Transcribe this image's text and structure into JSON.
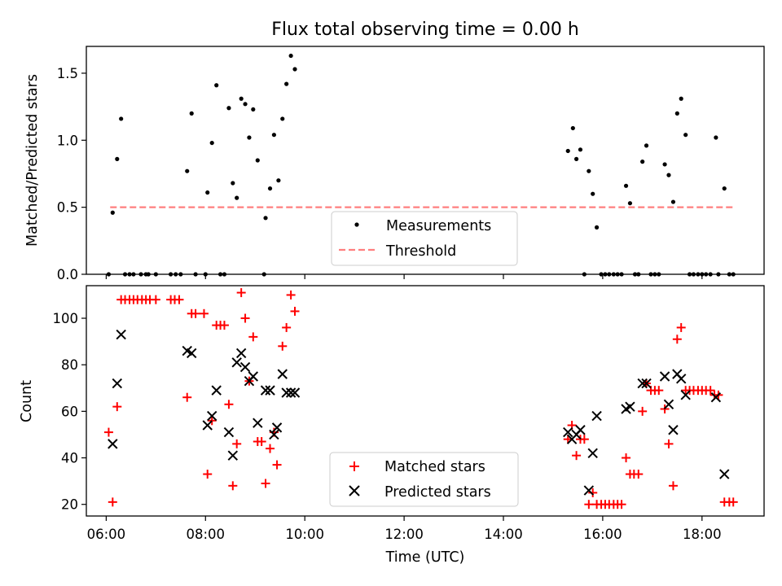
{
  "chart_data": [
    {
      "type": "scatter",
      "title": "Flux total observing time = 0.00 h",
      "xlabel": "",
      "ylabel": "Matched/Predicted stars",
      "xlim": [
        5.6,
        19.25
      ],
      "ylim": [
        0,
        1.7
      ],
      "yticks": [
        0.0,
        0.5,
        1.0,
        1.5
      ],
      "ytick_labels": [
        "0.0",
        "0.5",
        "1.0",
        "1.5"
      ],
      "legend_position": "lower center",
      "series": [
        {
          "name": "Measurements",
          "marker": "dot",
          "color": "#000000",
          "points": [
            [
              6.05,
              0.0
            ],
            [
              6.13,
              0.46
            ],
            [
              6.22,
              0.86
            ],
            [
              6.3,
              1.16
            ],
            [
              6.38,
              0.0
            ],
            [
              6.47,
              0.0
            ],
            [
              6.55,
              0.0
            ],
            [
              6.7,
              0.0
            ],
            [
              6.8,
              0.0
            ],
            [
              6.85,
              0.0
            ],
            [
              7.0,
              0.0
            ],
            [
              7.3,
              0.0
            ],
            [
              7.4,
              0.0
            ],
            [
              7.5,
              0.0
            ],
            [
              7.63,
              0.77
            ],
            [
              7.72,
              1.2
            ],
            [
              7.8,
              0.0
            ],
            [
              8.0,
              0.0
            ],
            [
              8.04,
              0.61
            ],
            [
              8.13,
              0.98
            ],
            [
              8.22,
              1.41
            ],
            [
              8.3,
              0.0
            ],
            [
              8.38,
              0.0
            ],
            [
              8.47,
              1.24
            ],
            [
              8.55,
              0.68
            ],
            [
              8.63,
              0.57
            ],
            [
              8.72,
              1.31
            ],
            [
              8.8,
              1.27
            ],
            [
              8.88,
              1.02
            ],
            [
              8.96,
              1.23
            ],
            [
              9.05,
              0.85
            ],
            [
              9.18,
              0.0
            ],
            [
              9.21,
              0.42
            ],
            [
              9.3,
              0.64
            ],
            [
              9.38,
              1.04
            ],
            [
              9.47,
              0.7
            ],
            [
              9.55,
              1.16
            ],
            [
              9.63,
              1.42
            ],
            [
              9.72,
              1.63
            ],
            [
              9.8,
              1.53
            ],
            [
              15.3,
              0.92
            ],
            [
              15.4,
              1.09
            ],
            [
              15.47,
              0.86
            ],
            [
              15.55,
              0.93
            ],
            [
              15.63,
              0.0
            ],
            [
              15.72,
              0.77
            ],
            [
              15.8,
              0.6
            ],
            [
              15.88,
              0.35
            ],
            [
              15.97,
              0.0
            ],
            [
              16.05,
              0.0
            ],
            [
              16.13,
              0.0
            ],
            [
              16.22,
              0.0
            ],
            [
              16.3,
              0.0
            ],
            [
              16.38,
              0.0
            ],
            [
              16.47,
              0.66
            ],
            [
              16.55,
              0.53
            ],
            [
              16.65,
              0.0
            ],
            [
              16.72,
              0.0
            ],
            [
              16.8,
              0.84
            ],
            [
              16.88,
              0.96
            ],
            [
              16.97,
              0.0
            ],
            [
              17.05,
              0.0
            ],
            [
              17.13,
              0.0
            ],
            [
              17.25,
              0.82
            ],
            [
              17.33,
              0.74
            ],
            [
              17.42,
              0.54
            ],
            [
              17.5,
              1.2
            ],
            [
              17.58,
              1.31
            ],
            [
              17.67,
              1.04
            ],
            [
              17.75,
              0.0
            ],
            [
              17.83,
              0.0
            ],
            [
              17.92,
              0.0
            ],
            [
              18.0,
              0.0
            ],
            [
              18.08,
              0.0
            ],
            [
              18.17,
              0.0
            ],
            [
              18.28,
              1.02
            ],
            [
              18.33,
              0.0
            ],
            [
              18.45,
              0.64
            ],
            [
              18.55,
              0.0
            ],
            [
              18.63,
              0.0
            ]
          ]
        },
        {
          "name": "Threshold",
          "style": "dashed",
          "color": "#ff7f7f",
          "x": [
            6.08,
            18.65
          ],
          "y": [
            0.5,
            0.5
          ]
        }
      ]
    },
    {
      "type": "scatter",
      "title": "",
      "xlabel": "Time (UTC)",
      "ylabel": "Count",
      "xlim": [
        5.6,
        19.25
      ],
      "ylim": [
        15,
        114
      ],
      "xticks": [
        6,
        8,
        10,
        12,
        14,
        16,
        18
      ],
      "xtick_labels": [
        "06:00",
        "08:00",
        "10:00",
        "12:00",
        "14:00",
        "16:00",
        "18:00"
      ],
      "yticks": [
        20,
        40,
        60,
        80,
        100
      ],
      "ytick_labels": [
        "20",
        "40",
        "60",
        "80",
        "100"
      ],
      "legend_position": "lower center",
      "series": [
        {
          "name": "Matched stars",
          "marker": "plus",
          "color": "#ff0000",
          "points": [
            [
              6.05,
              51
            ],
            [
              6.13,
              21
            ],
            [
              6.22,
              62
            ],
            [
              6.3,
              108
            ],
            [
              6.38,
              108
            ],
            [
              6.47,
              108
            ],
            [
              6.55,
              108
            ],
            [
              6.63,
              108
            ],
            [
              6.72,
              108
            ],
            [
              6.8,
              108
            ],
            [
              6.88,
              108
            ],
            [
              7.0,
              108
            ],
            [
              7.3,
              108
            ],
            [
              7.38,
              108
            ],
            [
              7.47,
              108
            ],
            [
              7.63,
              66
            ],
            [
              7.72,
              102
            ],
            [
              7.8,
              102
            ],
            [
              7.97,
              102
            ],
            [
              8.04,
              33
            ],
            [
              8.13,
              56
            ],
            [
              8.22,
              97
            ],
            [
              8.3,
              97
            ],
            [
              8.38,
              97
            ],
            [
              8.47,
              63
            ],
            [
              8.55,
              28
            ],
            [
              8.63,
              46
            ],
            [
              8.72,
              111
            ],
            [
              8.8,
              100
            ],
            [
              8.88,
              73
            ],
            [
              8.96,
              92
            ],
            [
              9.05,
              47
            ],
            [
              9.13,
              47
            ],
            [
              9.21,
              29
            ],
            [
              9.3,
              44
            ],
            [
              9.38,
              51
            ],
            [
              9.44,
              37
            ],
            [
              9.55,
              88
            ],
            [
              9.63,
              96
            ],
            [
              9.72,
              110
            ],
            [
              9.8,
              103
            ],
            [
              15.3,
              48
            ],
            [
              15.38,
              54
            ],
            [
              15.47,
              41
            ],
            [
              15.55,
              48
            ],
            [
              15.63,
              48
            ],
            [
              15.72,
              20
            ],
            [
              15.8,
              25
            ],
            [
              15.88,
              20
            ],
            [
              15.97,
              20
            ],
            [
              16.05,
              20
            ],
            [
              16.13,
              20
            ],
            [
              16.22,
              20
            ],
            [
              16.3,
              20
            ],
            [
              16.38,
              20
            ],
            [
              16.47,
              40
            ],
            [
              16.55,
              33
            ],
            [
              16.63,
              33
            ],
            [
              16.72,
              33
            ],
            [
              16.8,
              60
            ],
            [
              16.88,
              72
            ],
            [
              16.97,
              69
            ],
            [
              17.05,
              69
            ],
            [
              17.13,
              69
            ],
            [
              17.25,
              61
            ],
            [
              17.33,
              46
            ],
            [
              17.42,
              28
            ],
            [
              17.5,
              91
            ],
            [
              17.58,
              96
            ],
            [
              17.67,
              69
            ],
            [
              17.75,
              69
            ],
            [
              17.83,
              69
            ],
            [
              17.92,
              69
            ],
            [
              18.0,
              69
            ],
            [
              18.08,
              69
            ],
            [
              18.17,
              69
            ],
            [
              18.25,
              67
            ],
            [
              18.33,
              67
            ],
            [
              18.45,
              21
            ],
            [
              18.55,
              21
            ],
            [
              18.63,
              21
            ]
          ]
        },
        {
          "name": "Predicted stars",
          "marker": "x",
          "color": "#000000",
          "points": [
            [
              6.13,
              46
            ],
            [
              6.22,
              72
            ],
            [
              6.3,
              93
            ],
            [
              7.63,
              86
            ],
            [
              7.72,
              85
            ],
            [
              8.04,
              54
            ],
            [
              8.13,
              58
            ],
            [
              8.22,
              69
            ],
            [
              8.47,
              51
            ],
            [
              8.55,
              41
            ],
            [
              8.63,
              81
            ],
            [
              8.72,
              85
            ],
            [
              8.8,
              79
            ],
            [
              8.88,
              73
            ],
            [
              8.96,
              75
            ],
            [
              9.05,
              55
            ],
            [
              9.21,
              69
            ],
            [
              9.3,
              69
            ],
            [
              9.38,
              50
            ],
            [
              9.44,
              53
            ],
            [
              9.55,
              76
            ],
            [
              9.63,
              68
            ],
            [
              9.72,
              68
            ],
            [
              9.8,
              68
            ],
            [
              15.3,
              51
            ],
            [
              15.38,
              48
            ],
            [
              15.47,
              50
            ],
            [
              15.55,
              52
            ],
            [
              15.72,
              26
            ],
            [
              15.8,
              42
            ],
            [
              15.88,
              58
            ],
            [
              16.47,
              61
            ],
            [
              16.55,
              62
            ],
            [
              16.8,
              72
            ],
            [
              16.88,
              72
            ],
            [
              17.25,
              75
            ],
            [
              17.33,
              63
            ],
            [
              17.42,
              52
            ],
            [
              17.5,
              76
            ],
            [
              17.58,
              74
            ],
            [
              17.67,
              67
            ],
            [
              18.28,
              66
            ],
            [
              18.45,
              33
            ]
          ]
        }
      ]
    }
  ]
}
